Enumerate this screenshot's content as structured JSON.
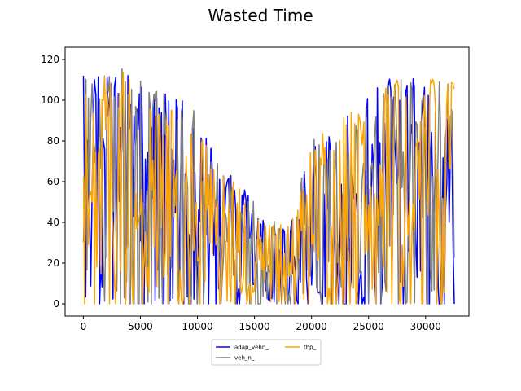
{
  "chart_data": {
    "type": "line",
    "title": "Wasted Time",
    "xlabel": "",
    "ylabel": "",
    "xlim": [
      -1600,
      33800
    ],
    "ylim": [
      -6,
      126
    ],
    "xticks": [
      0,
      5000,
      10000,
      15000,
      20000,
      25000,
      30000
    ],
    "yticks": [
      0,
      20,
      40,
      60,
      80,
      100,
      120
    ],
    "grid": false,
    "legend_placement": "bottom-center",
    "legend_columns": 2,
    "series": [
      {
        "name": "adap_vehn_",
        "color": "#0000ff"
      },
      {
        "name": "veh_n_",
        "color": "#808080"
      },
      {
        "name": "thp_",
        "color": "#ffa500"
      }
    ],
    "x_range": [
      0,
      32500
    ],
    "point_count_per_series": 300,
    "envelope": [
      {
        "x": 0,
        "min": 0,
        "max": 114
      },
      {
        "x": 3000,
        "min": 0,
        "max": 117
      },
      {
        "x": 7000,
        "min": 0,
        "max": 108
      },
      {
        "x": 10000,
        "min": 0,
        "max": 96
      },
      {
        "x": 12000,
        "min": 0,
        "max": 69
      },
      {
        "x": 14000,
        "min": 0,
        "max": 58
      },
      {
        "x": 16000,
        "min": 0,
        "max": 42
      },
      {
        "x": 18000,
        "min": 0,
        "max": 38
      },
      {
        "x": 20000,
        "min": 0,
        "max": 80
      },
      {
        "x": 22000,
        "min": 0,
        "max": 88
      },
      {
        "x": 24000,
        "min": 0,
        "max": 96
      },
      {
        "x": 26000,
        "min": 0,
        "max": 109
      },
      {
        "x": 28000,
        "min": 0,
        "max": 114
      },
      {
        "x": 32500,
        "min": 0,
        "max": 109
      }
    ]
  }
}
